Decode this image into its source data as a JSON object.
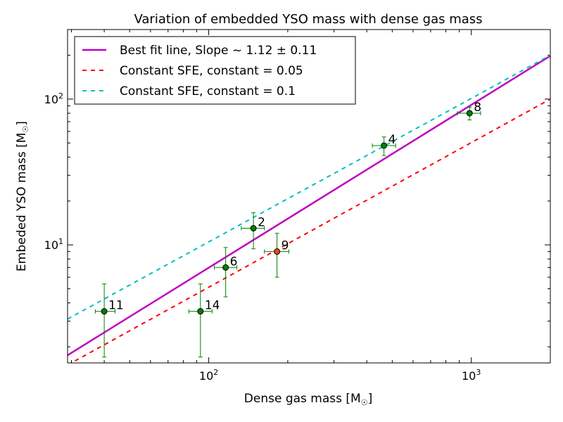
{
  "chart_data": {
    "type": "scatter",
    "title": "Variation of embedded YSO mass with dense gas mass",
    "xlabel": "Dense gas mass [M",
    "xlabel_sub": "☉",
    "xlabel_close": "]",
    "ylabel": "Embeded YSO mass [M",
    "ylabel_sub": "☉",
    "ylabel_close": "]",
    "xscale": "log",
    "yscale": "log",
    "xlim": [
      29,
      2000
    ],
    "ylim": [
      1.55,
      300
    ],
    "x_ticks": [
      {
        "value": 100,
        "base": "10",
        "exp": "2"
      },
      {
        "value": 1000,
        "base": "10",
        "exp": "3"
      }
    ],
    "y_ticks": [
      {
        "value": 10,
        "base": "10",
        "exp": "1"
      },
      {
        "value": 100,
        "base": "10",
        "exp": "2"
      }
    ],
    "legend": {
      "position": "top-left",
      "entries": [
        {
          "label": "Best fit line, Slope ~ 1.12 ± 0.11",
          "color": "#bf00bf",
          "style": "solid"
        },
        {
          "label": "Constant SFE, constant = 0.05",
          "color": "#ff0000",
          "style": "dashed"
        },
        {
          "label": "Constant SFE, constant = 0.1",
          "color": "#00bfbf",
          "style": "dashed"
        }
      ]
    },
    "lines": [
      {
        "name": "best_fit",
        "color": "#bf00bf",
        "style": "solid",
        "x": [
          29,
          2000
        ],
        "y": [
          1.75,
          198
        ]
      },
      {
        "name": "sfe_0.05",
        "color": "#ff0000",
        "style": "dashed",
        "x": [
          29,
          2000
        ],
        "y": [
          1.5,
          100
        ]
      },
      {
        "name": "sfe_0.1",
        "color": "#00bfbf",
        "style": "dashed",
        "x": [
          29,
          2000
        ],
        "y": [
          3.1,
          200
        ]
      }
    ],
    "points": [
      {
        "label": "11",
        "x": 40,
        "y": 3.5,
        "xerr": [
          37,
          44
        ],
        "yerr": [
          1.7,
          5.4
        ],
        "color": "#008000"
      },
      {
        "label": "14",
        "x": 93,
        "y": 3.5,
        "xerr": [
          84,
          103
        ],
        "yerr": [
          1.7,
          5.4
        ],
        "color": "#008000"
      },
      {
        "label": "6",
        "x": 116,
        "y": 7.0,
        "xerr": [
          105,
          128
        ],
        "yerr": [
          4.4,
          9.6
        ],
        "color": "#008000"
      },
      {
        "label": "2",
        "x": 148,
        "y": 13.0,
        "xerr": [
          133,
          163
        ],
        "yerr": [
          9.4,
          16.6
        ],
        "color": "#008000"
      },
      {
        "label": "9",
        "x": 182,
        "y": 9.0,
        "xerr": [
          163,
          202
        ],
        "yerr": [
          6.0,
          12.0
        ],
        "color": "#ff4500"
      },
      {
        "label": "4",
        "x": 465,
        "y": 48,
        "xerr": [
          420,
          515
        ],
        "yerr": [
          41,
          55
        ],
        "color": "#008000"
      },
      {
        "label": "8",
        "x": 985,
        "y": 80,
        "xerr": [
          885,
          1085
        ],
        "yerr": [
          72,
          88
        ],
        "color": "#008000"
      }
    ]
  }
}
